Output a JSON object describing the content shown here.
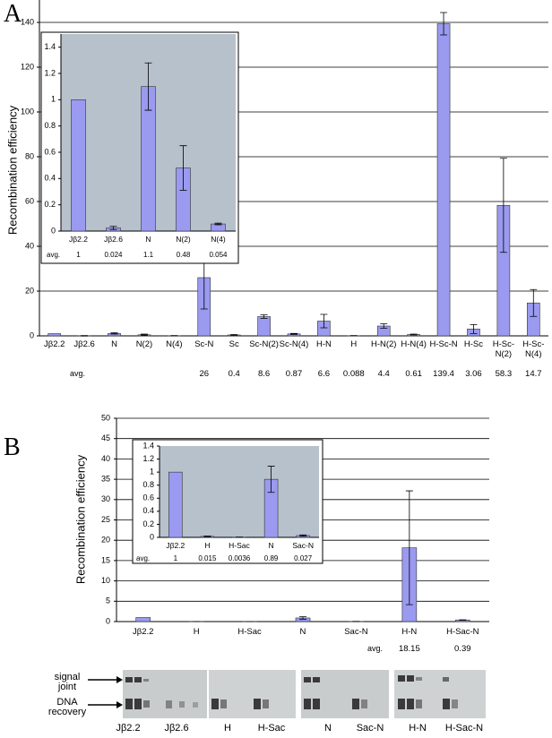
{
  "chart_data": [
    {
      "type": "bar",
      "panel": "A",
      "ylabel": "Recombination efficiency",
      "avg_label": "avg.",
      "categories": [
        "Jβ2.2",
        "Jβ2.6",
        "N",
        "N(2)",
        "N(4)",
        "Sc-N",
        "Sc",
        "Sc-N(2)",
        "Sc-N(4)",
        "H-N",
        "H",
        "H-N(2)",
        "H-N(4)",
        "H-Sc-N",
        "H-Sc",
        "H-Sc-N(2)",
        "H-Sc-N(4)"
      ],
      "values": [
        1,
        0.024,
        1.1,
        0.48,
        0.054,
        26,
        0.4,
        8.6,
        0.87,
        6.6,
        0.088,
        4.4,
        0.61,
        139.4,
        3.06,
        58.3,
        14.7
      ],
      "value_labels": [
        null,
        null,
        null,
        null,
        null,
        "26",
        "0.4",
        "8.6",
        "0.87",
        "6.6",
        "0.088",
        "4.4",
        "0.61",
        "139.4",
        "3.06",
        "58.3",
        "14.7"
      ],
      "errors": [
        null,
        0.1,
        0.3,
        0.3,
        0.1,
        14,
        0.2,
        0.8,
        0.2,
        3,
        0.05,
        1,
        0.2,
        5,
        2,
        21,
        6
      ],
      "color": "#9a9af0",
      "ylim": [
        0,
        150
      ],
      "yticks": [
        0,
        20,
        40,
        60,
        80,
        100,
        120,
        140
      ],
      "grid": true
    },
    {
      "type": "bar",
      "avg_label": "avg.",
      "categories": [
        "Jβ2.2",
        "Jβ2.6",
        "N",
        "N(2)",
        "N(4)"
      ],
      "values": [
        1,
        0.024,
        1.1,
        0.48,
        0.054
      ],
      "errors": [
        null,
        0.012,
        0.18,
        0.17,
        0.006
      ],
      "color": "#9a9af0",
      "background": "#b7c1cc",
      "ylim": [
        0,
        1.5
      ],
      "yticks": [
        0,
        0.2,
        0.4,
        0.6,
        0.8,
        1,
        1.2,
        1.4
      ],
      "grid": false
    },
    {
      "type": "bar",
      "panel": "B",
      "ylabel": "Recombination efficiency",
      "avg_label": "avg.",
      "categories": [
        "Jβ2.2",
        "H",
        "H-Sac",
        "N",
        "Sac-N",
        "H-N",
        "H-Sac-N"
      ],
      "values": [
        1,
        0.015,
        0.0036,
        0.89,
        0.027,
        18.15,
        0.39
      ],
      "value_labels": [
        null,
        null,
        null,
        null,
        null,
        "18.15",
        "0.39"
      ],
      "errors": [
        null,
        0.01,
        0.003,
        0.3,
        0.02,
        14,
        0.05
      ],
      "color": "#9a9af0",
      "ylim": [
        0,
        50
      ],
      "yticks": [
        0,
        5,
        10,
        15,
        20,
        25,
        30,
        35,
        40,
        45,
        50
      ],
      "grid": true
    },
    {
      "type": "bar",
      "avg_label": "avg.",
      "categories": [
        "Jβ2.2",
        "H",
        "H-Sac",
        "N",
        "Sac-N"
      ],
      "values": [
        1,
        0.015,
        0.0036,
        0.89,
        0.027
      ],
      "errors": [
        null,
        0.005,
        0.002,
        0.2,
        0.01
      ],
      "color": "#9a9af0",
      "background": "#b7c1cc",
      "ylim": [
        0,
        1.4
      ],
      "yticks": [
        0,
        0.2,
        0.4,
        0.6,
        0.8,
        1,
        1.2,
        1.4
      ],
      "grid": false
    }
  ],
  "gel": {
    "markers": [
      "signal joint",
      "DNA recovery"
    ],
    "lanes": [
      "Jβ2.2",
      "Jβ2.6",
      "H",
      "H-Sac",
      "N",
      "Sac-N",
      "H-N",
      "H-Sac-N"
    ]
  }
}
